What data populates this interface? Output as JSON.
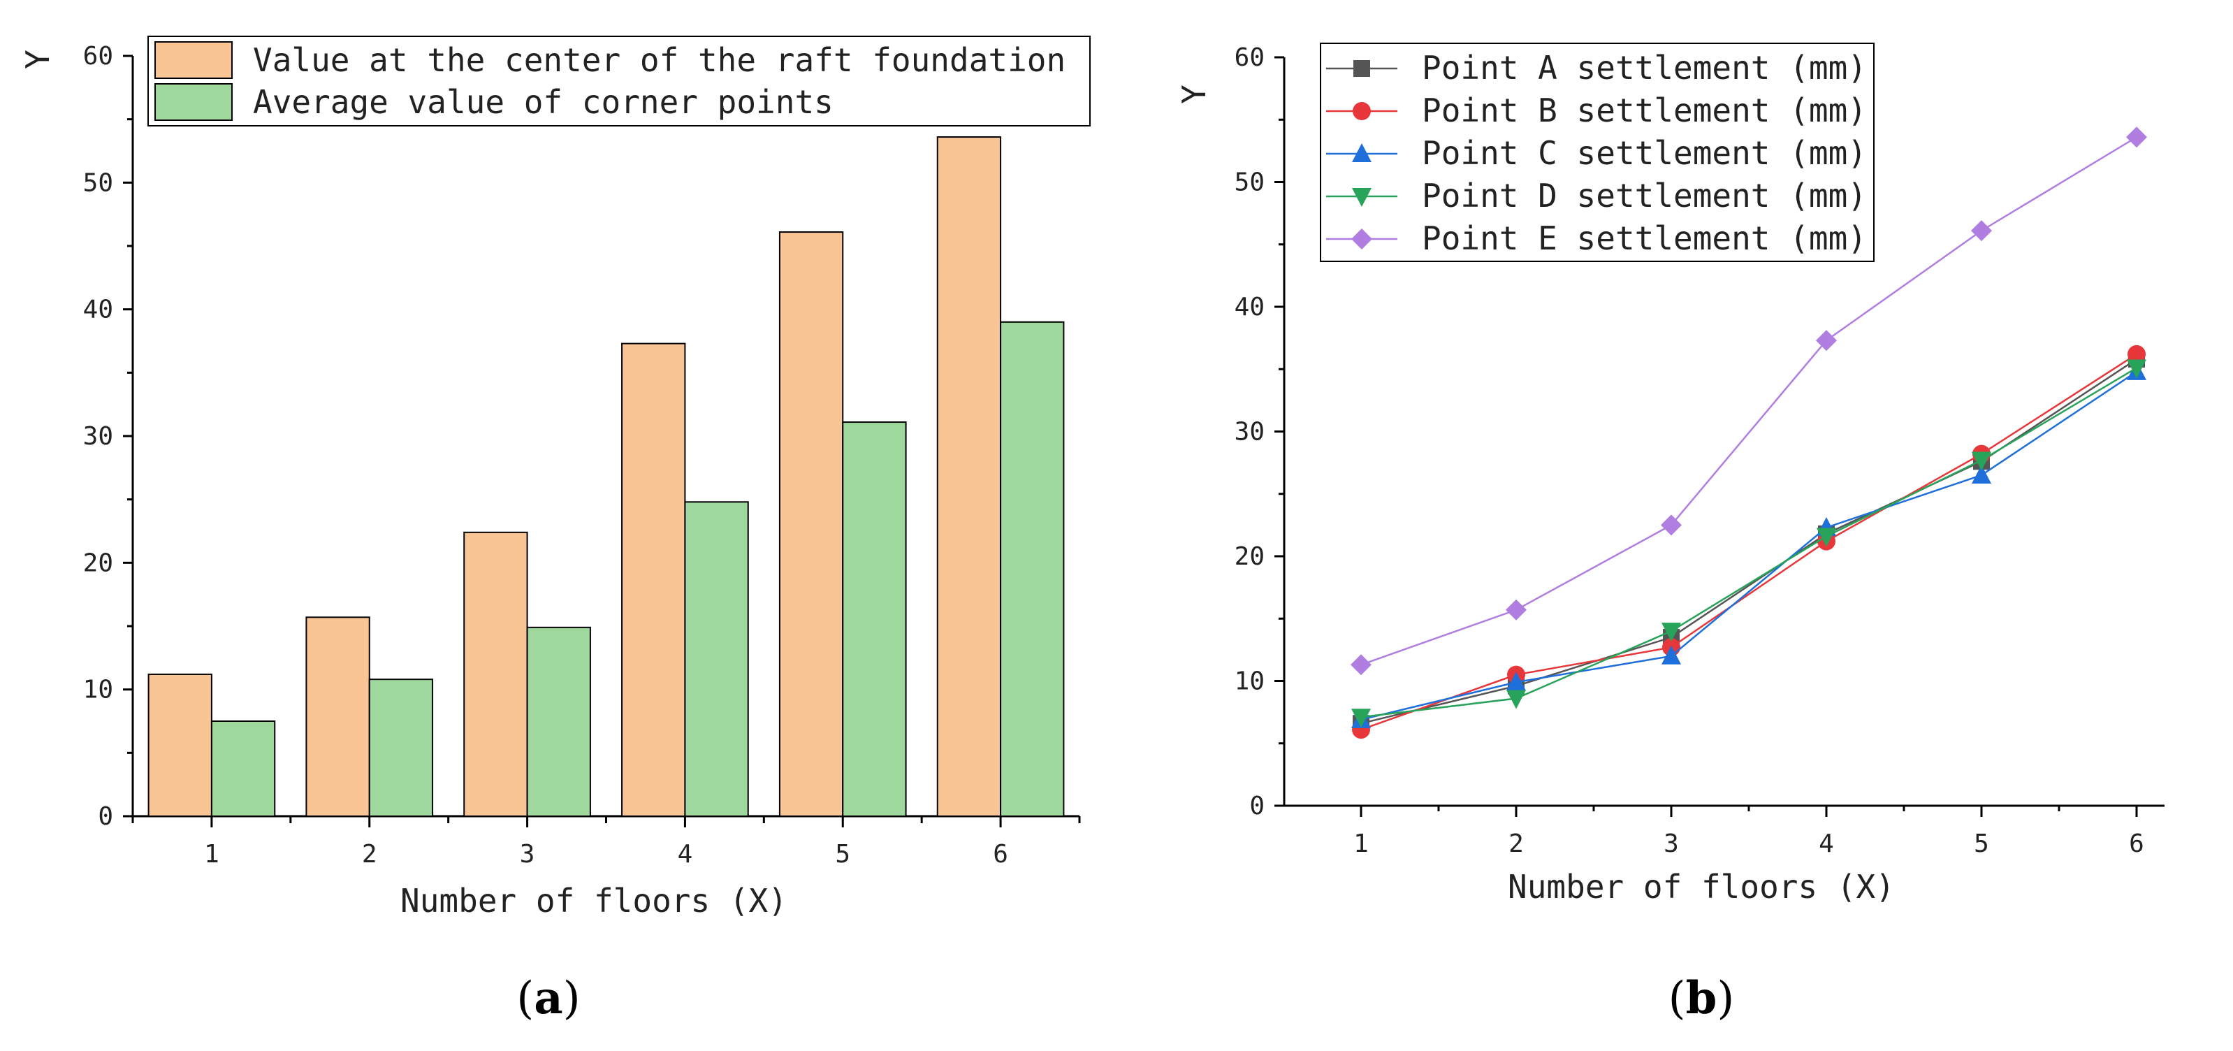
{
  "chart_data": [
    {
      "type": "bar",
      "panel_label": "a",
      "xlabel": "Number of floors (X)",
      "ylabel": "Y",
      "ylim": [
        0,
        60
      ],
      "y_ticks": [
        0,
        10,
        20,
        30,
        40,
        50,
        60
      ],
      "categories": [
        "1",
        "2",
        "3",
        "4",
        "5",
        "6"
      ],
      "legend_position": "top",
      "series": [
        {
          "name": "Value at the center of the raft foundation",
          "color": "#f9c595",
          "values": [
            11.2,
            15.7,
            22.4,
            37.3,
            46.1,
            53.6
          ]
        },
        {
          "name": "Average value of corner points",
          "color": "#9fd89d",
          "values": [
            7.5,
            10.8,
            14.9,
            24.8,
            31.1,
            39.0
          ]
        }
      ]
    },
    {
      "type": "line",
      "panel_label": "b",
      "xlabel": "Number of floors (X)",
      "ylabel": "Y",
      "ylim": [
        0,
        60
      ],
      "y_ticks": [
        0,
        10,
        20,
        30,
        40,
        50,
        60
      ],
      "x": [
        1,
        2,
        3,
        4,
        5,
        6
      ],
      "legend_position": "top-left",
      "series": [
        {
          "name": "Point A settlement (mm)",
          "color": "#555555",
          "marker": "square",
          "values": [
            6.6,
            9.6,
            13.5,
            21.8,
            27.6,
            35.8
          ]
        },
        {
          "name": "Point B settlement (mm)",
          "color": "#e8373a",
          "marker": "circle",
          "values": [
            6.1,
            10.5,
            12.7,
            21.2,
            28.2,
            36.2
          ]
        },
        {
          "name": "Point C settlement (mm)",
          "color": "#1e6fd9",
          "marker": "triangle-up",
          "values": [
            6.9,
            9.9,
            12.0,
            22.3,
            26.5,
            34.8
          ]
        },
        {
          "name": "Point D settlement (mm)",
          "color": "#27a35a",
          "marker": "triangle-down",
          "values": [
            7.1,
            8.6,
            14.0,
            21.6,
            27.7,
            35.1
          ]
        },
        {
          "name": "Point E settlement (mm)",
          "color": "#b07ee0",
          "marker": "diamond",
          "values": [
            11.3,
            15.7,
            22.5,
            37.3,
            46.1,
            53.6
          ]
        }
      ]
    }
  ]
}
